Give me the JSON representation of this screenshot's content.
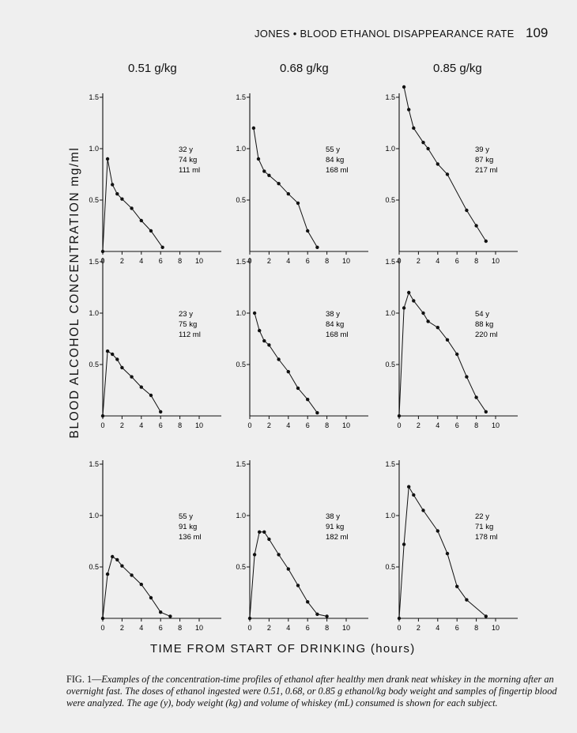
{
  "header": {
    "running_title": "JONES • BLOOD ETHANOL DISAPPEARANCE RATE",
    "page_number": "109"
  },
  "doses": [
    "0.51 g/kg",
    "0.68 g/kg",
    "0.85 g/kg"
  ],
  "axis_labels": {
    "y": "BLOOD ALCOHOL CONCENTRATION mg/ml",
    "x": "TIME FROM START OF DRINKING (hours)"
  },
  "caption": {
    "fig_label": "FIG. 1—",
    "text": "Examples of the concentration-time profiles of ethanol after healthy men drank neat whiskey in the morning after an overnight fast. The doses of ethanol ingested were 0.51, 0.68, or 0.85 g ethanol/kg body weight and samples of fingertip blood were analyzed. The age (y), body weight (kg) and volume of whiskey (mL) consumed is shown for each subject."
  },
  "chart_data": [
    {
      "type": "line",
      "dose": "0.51 g/kg",
      "subject": [
        "32 y",
        "74 kg",
        "111 ml"
      ],
      "x_ticks": [
        0,
        2,
        4,
        6,
        8,
        10
      ],
      "y_ticks": [
        "0.5",
        "1.0",
        "1.5"
      ],
      "xlim": [
        0,
        12
      ],
      "ylim": [
        0,
        1.6
      ],
      "x": [
        0,
        0.5,
        1,
        1.5,
        2,
        3,
        4,
        5,
        6.2
      ],
      "y": [
        0,
        0.9,
        0.65,
        0.56,
        0.51,
        0.42,
        0.3,
        0.2,
        0.04
      ]
    },
    {
      "type": "line",
      "dose": "0.68 g/kg",
      "subject": [
        "55 y",
        "84 kg",
        "168 ml"
      ],
      "x_ticks": [
        0,
        2,
        4,
        6,
        8,
        10
      ],
      "y_ticks": [
        "0.5",
        "1.0",
        "1.5"
      ],
      "xlim": [
        0,
        12
      ],
      "ylim": [
        0,
        1.6
      ],
      "x": [
        0.4,
        0.9,
        1.5,
        2,
        3,
        4,
        5,
        6,
        7
      ],
      "y": [
        1.2,
        0.9,
        0.78,
        0.74,
        0.66,
        0.56,
        0.47,
        0.2,
        0.04
      ]
    },
    {
      "type": "line",
      "dose": "0.85 g/kg",
      "subject": [
        "39 y",
        "87 kg",
        "217 ml"
      ],
      "x_ticks": [
        0,
        2,
        4,
        6,
        8,
        10
      ],
      "y_ticks": [
        "0.5",
        "1.0",
        "1.5"
      ],
      "xlim": [
        0,
        12
      ],
      "ylim": [
        0,
        1.6
      ],
      "x": [
        0.5,
        1,
        1.5,
        2.5,
        3,
        4,
        5,
        7,
        8,
        9
      ],
      "y": [
        1.6,
        1.38,
        1.2,
        1.06,
        1.0,
        0.85,
        0.75,
        0.4,
        0.25,
        0.1
      ]
    },
    {
      "type": "line",
      "dose": "0.51 g/kg",
      "subject": [
        "23 y",
        "75 kg",
        "112 ml"
      ],
      "x_ticks": [
        0,
        2,
        4,
        6,
        8,
        10
      ],
      "y_ticks": [
        "0.5",
        "1.0",
        "1.5"
      ],
      "xlim": [
        0,
        12
      ],
      "ylim": [
        0,
        1.6
      ],
      "x": [
        0,
        0.5,
        1,
        1.5,
        2,
        3,
        4,
        5,
        6
      ],
      "y": [
        0,
        0.63,
        0.6,
        0.55,
        0.47,
        0.38,
        0.28,
        0.2,
        0.04
      ]
    },
    {
      "type": "line",
      "dose": "0.68 g/kg",
      "subject": [
        "38 y",
        "84 kg",
        "168 ml"
      ],
      "x_ticks": [
        0,
        2,
        4,
        6,
        8,
        10
      ],
      "y_ticks": [
        "0.5",
        "1.0",
        "1.5"
      ],
      "xlim": [
        0,
        12
      ],
      "ylim": [
        0,
        1.6
      ],
      "x": [
        0.5,
        1,
        1.5,
        2,
        3,
        4,
        5,
        6,
        7
      ],
      "y": [
        1.0,
        0.83,
        0.73,
        0.69,
        0.55,
        0.43,
        0.27,
        0.16,
        0.03
      ]
    },
    {
      "type": "line",
      "dose": "0.85 g/kg",
      "subject": [
        "54 y",
        "88 kg",
        "220 ml"
      ],
      "x_ticks": [
        0,
        2,
        4,
        6,
        8,
        10
      ],
      "y_ticks": [
        "0.5",
        "1.0",
        "1.5"
      ],
      "xlim": [
        0,
        12
      ],
      "ylim": [
        0,
        1.6
      ],
      "x": [
        0,
        0.5,
        1,
        1.5,
        2.5,
        3,
        4,
        5,
        6,
        7,
        8,
        9
      ],
      "y": [
        0,
        1.05,
        1.2,
        1.12,
        1.0,
        0.92,
        0.86,
        0.74,
        0.6,
        0.38,
        0.18,
        0.04
      ]
    },
    {
      "type": "line",
      "dose": "0.51 g/kg",
      "subject": [
        "55 y",
        "91 kg",
        "136 ml"
      ],
      "x_ticks": [
        0,
        2,
        4,
        6,
        8,
        10
      ],
      "y_ticks": [
        "0.5",
        "1.0",
        "1.5"
      ],
      "xlim": [
        0,
        12
      ],
      "ylim": [
        0,
        1.6
      ],
      "x": [
        0,
        0.5,
        1,
        1.5,
        2,
        3,
        4,
        5,
        6,
        7
      ],
      "y": [
        0,
        0.43,
        0.6,
        0.57,
        0.51,
        0.42,
        0.33,
        0.2,
        0.06,
        0.02
      ]
    },
    {
      "type": "line",
      "dose": "0.68 g/kg",
      "subject": [
        "38 y",
        "91 kg",
        "182 ml"
      ],
      "x_ticks": [
        0,
        2,
        4,
        6,
        8,
        10
      ],
      "y_ticks": [
        "0.5",
        "1.0",
        "1.5"
      ],
      "xlim": [
        0,
        12
      ],
      "ylim": [
        0,
        1.6
      ],
      "x": [
        0,
        0.5,
        1,
        1.5,
        2,
        3,
        4,
        5,
        6,
        7,
        8
      ],
      "y": [
        0,
        0.62,
        0.84,
        0.84,
        0.77,
        0.62,
        0.48,
        0.32,
        0.16,
        0.04,
        0.02
      ]
    },
    {
      "type": "line",
      "dose": "0.85 g/kg",
      "subject": [
        "22 y",
        "71 kg",
        "178 ml"
      ],
      "x_ticks": [
        0,
        2,
        4,
        6,
        8,
        10
      ],
      "y_ticks": [
        "0.5",
        "1.0",
        "1.5"
      ],
      "xlim": [
        0,
        12
      ],
      "ylim": [
        0,
        1.6
      ],
      "x": [
        0,
        0.5,
        1,
        1.5,
        2.5,
        4,
        5,
        6,
        7,
        9
      ],
      "y": [
        0,
        0.72,
        1.28,
        1.2,
        1.05,
        0.85,
        0.63,
        0.31,
        0.18,
        0.02
      ]
    }
  ]
}
